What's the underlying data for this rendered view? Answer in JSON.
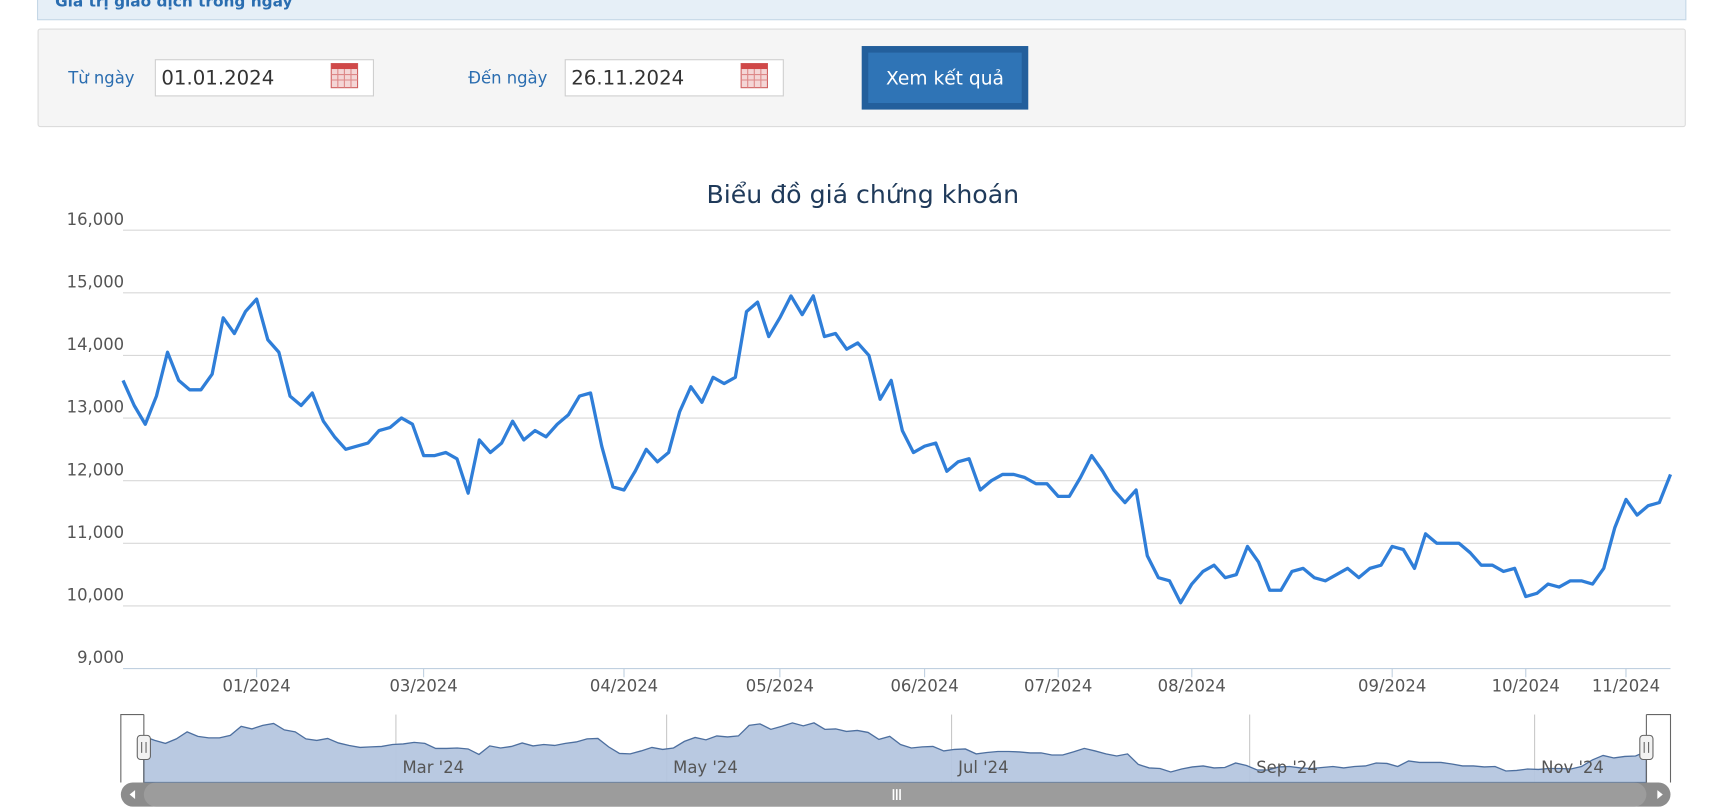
{
  "header": {
    "title": "Giá trị giao dịch trong ngày"
  },
  "form": {
    "from_label": "Từ ngày",
    "from_value": "01.01.2024",
    "to_label": "Đến ngày",
    "to_value": "26.11.2024",
    "button": "Xem kết quả"
  },
  "chart_data": {
    "type": "line",
    "title": "Biểu đồ giá chứng khoán",
    "categories": [
      null,
      null,
      null,
      null,
      null,
      null,
      null,
      null,
      null,
      null,
      null,
      null,
      "01/2024",
      null,
      null,
      null,
      null,
      null,
      null,
      null,
      null,
      null,
      null,
      null,
      null,
      null,
      null,
      "03/2024",
      null,
      null,
      null,
      null,
      null,
      null,
      null,
      null,
      null,
      null,
      null,
      null,
      null,
      null,
      null,
      null,
      null,
      "04/2024",
      null,
      null,
      null,
      null,
      null,
      null,
      null,
      null,
      null,
      null,
      null,
      null,
      null,
      "05/2024",
      null,
      null,
      null,
      null,
      null,
      null,
      null,
      null,
      null,
      null,
      null,
      null,
      "06/2024",
      null,
      null,
      null,
      null,
      null,
      null,
      null,
      null,
      null,
      null,
      null,
      "07/2024",
      null,
      null,
      null,
      null,
      null,
      null,
      null,
      null,
      null,
      null,
      null,
      "08/2024",
      null,
      null,
      null,
      null,
      null,
      null,
      null,
      null,
      null,
      null,
      null,
      null,
      null,
      null,
      null,
      null,
      null,
      "09/2024",
      null,
      null,
      null,
      null,
      null,
      null,
      null,
      null,
      null,
      null,
      null,
      "10/2024",
      null,
      null,
      null,
      null,
      null,
      null,
      null,
      null,
      "11/2024",
      null,
      null,
      null,
      null
    ],
    "series": [
      {
        "color": "#2f7ed8",
        "values": [
          13600,
          13200,
          12900,
          13350,
          14050,
          13600,
          13450,
          13450,
          13700,
          14600,
          14350,
          14700,
          14900,
          14250,
          14050,
          13350,
          13200,
          13400,
          12950,
          12700,
          12500,
          12550,
          12600,
          12800,
          12850,
          13000,
          12900,
          12400,
          12400,
          12450,
          12350,
          11800,
          12650,
          12450,
          12600,
          12950,
          12650,
          12800,
          12700,
          12900,
          13050,
          13350,
          13400,
          12550,
          11900,
          11850,
          12150,
          12500,
          12300,
          12450,
          13100,
          13500,
          13250,
          13650,
          13550,
          13650,
          14700,
          14850,
          14300,
          14600,
          14950,
          14650,
          14950,
          14300,
          14350,
          14100,
          14200,
          14000,
          13300,
          13600,
          12800,
          12450,
          12550,
          12600,
          12150,
          12300,
          12350,
          11850,
          12000,
          12100,
          12100,
          12050,
          11950,
          11950,
          11750,
          11750,
          12050,
          12400,
          12150,
          11850,
          11650,
          11850,
          10800,
          10450,
          10400,
          10050,
          10350,
          10550,
          10650,
          10450,
          10500,
          10950,
          10700,
          10250,
          10250,
          10550,
          10600,
          10450,
          10400,
          10500,
          10600,
          10450,
          10600,
          10650,
          10950,
          10900,
          10600,
          11150,
          11000,
          11000,
          11000,
          10850,
          10650,
          10650,
          10550,
          10600,
          10150,
          10200,
          10350,
          10300,
          10400,
          10400,
          10350,
          10600,
          11250,
          11700,
          11450,
          11600,
          11650,
          12100
        ]
      }
    ],
    "ylim": [
      9000,
      16000
    ],
    "yticks": [
      {
        "value": 9000,
        "label": "9,000"
      },
      {
        "value": 10000,
        "label": "10,000"
      },
      {
        "value": 11000,
        "label": "11,000"
      },
      {
        "value": 12000,
        "label": "12,000"
      },
      {
        "value": 13000,
        "label": "13,000"
      },
      {
        "value": 14000,
        "label": "14,000"
      },
      {
        "value": 15000,
        "label": "15,000"
      },
      {
        "value": 16000,
        "label": "16,000"
      }
    ],
    "grid": true,
    "navigator": {
      "labels": [
        "Mar '24",
        "May '24",
        "Jul '24",
        "Sep '24",
        "Nov '24"
      ]
    }
  }
}
